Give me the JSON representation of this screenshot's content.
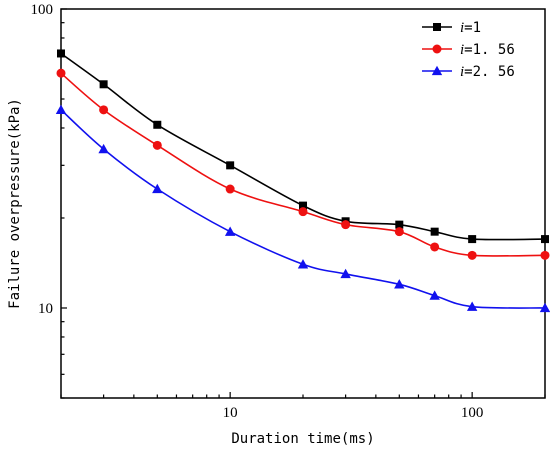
{
  "chart_data": {
    "type": "line",
    "xscale": "log",
    "yscale": "log",
    "xlim": [
      2,
      200
    ],
    "ylim": [
      5,
      100
    ],
    "xlabel": "Duration time(ms)",
    "ylabel": "Failure overpressure(kPa)",
    "x_ticks": [
      10,
      100
    ],
    "y_ticks": [
      10,
      100
    ],
    "legend_position": "top-right",
    "grid": false,
    "series": [
      {
        "name_italic": "i",
        "name_suffix": "=1",
        "color": "#000000",
        "marker": "square",
        "x": [
          2,
          3,
          5,
          10,
          20,
          30,
          50,
          70,
          100,
          200
        ],
        "y": [
          71,
          56,
          41,
          30,
          22,
          19.5,
          19,
          18,
          17,
          17
        ]
      },
      {
        "name_italic": "i",
        "name_suffix": "=1. 56",
        "color": "#ee1111",
        "marker": "circle",
        "x": [
          2,
          3,
          5,
          10,
          20,
          30,
          50,
          70,
          100,
          200
        ],
        "y": [
          61,
          46,
          35,
          25,
          21,
          19,
          18,
          16,
          15,
          15
        ]
      },
      {
        "name_italic": "i",
        "name_suffix": "=2. 56",
        "color": "#1111ee",
        "marker": "triangle",
        "x": [
          2,
          3,
          5,
          10,
          20,
          30,
          50,
          70,
          100,
          200
        ],
        "y": [
          46,
          34,
          25,
          18,
          14,
          13,
          12,
          11,
          10.1,
          10
        ]
      }
    ]
  }
}
